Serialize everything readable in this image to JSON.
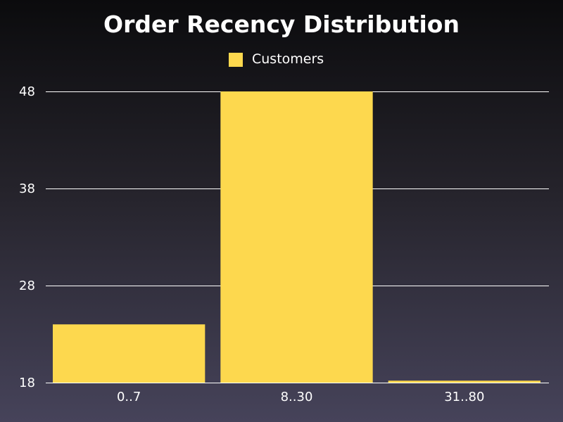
{
  "chart_data": {
    "type": "bar",
    "title": "Order Recency Distribution",
    "categories": [
      "0..7",
      "8..30",
      "31..80"
    ],
    "series": [
      {
        "name": "Customers",
        "color": "#fdd84e",
        "values": [
          24,
          48,
          18.2
        ]
      }
    ],
    "ylim": [
      18,
      48
    ],
    "yticks": [
      "18",
      "28",
      "38",
      "48"
    ],
    "grid": true,
    "legend_position": "top-center"
  }
}
